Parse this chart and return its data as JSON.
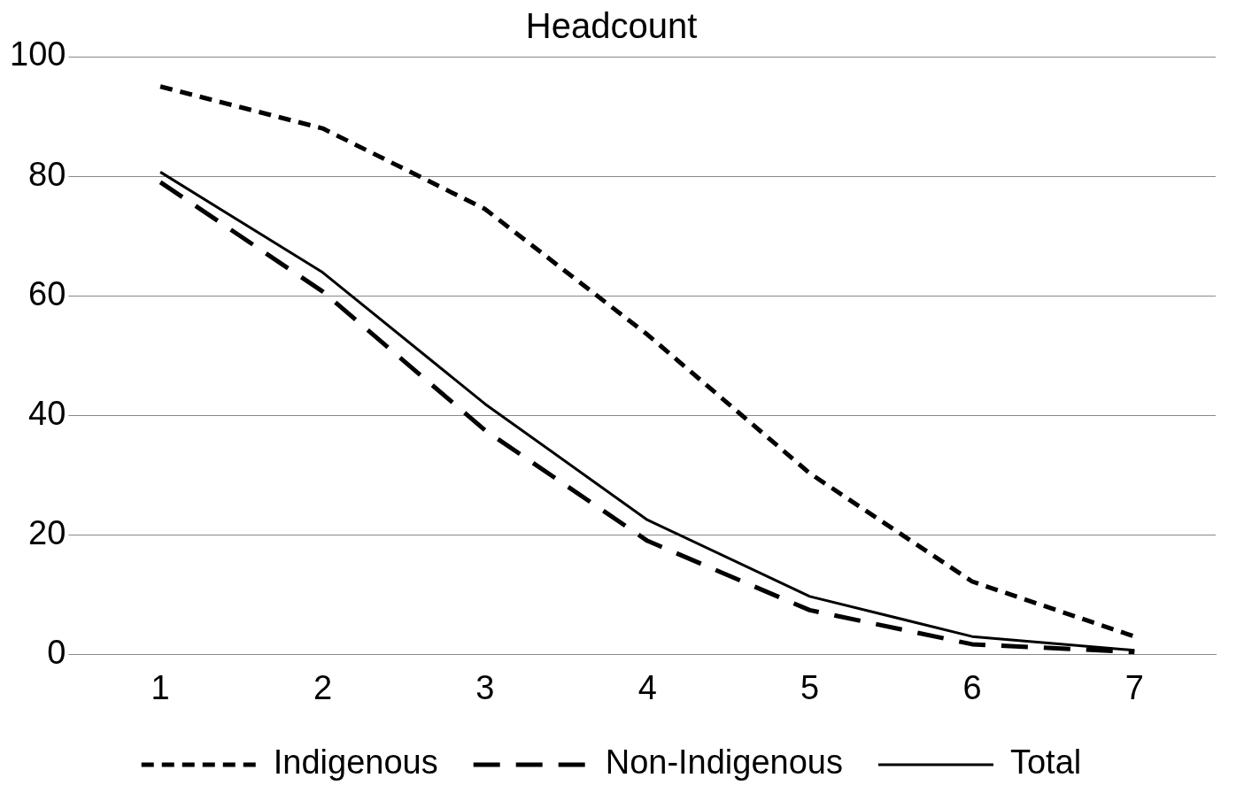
{
  "chart_data": {
    "type": "line",
    "title": "Headcount",
    "categories": [
      "1",
      "2",
      "3",
      "4",
      "5",
      "6",
      "7"
    ],
    "series": [
      {
        "name": "Indigenous",
        "color": "#000000",
        "line_style": "dotted",
        "values": [
          95,
          88,
          74.5,
          53.5,
          30.3,
          12.2,
          3
        ]
      },
      {
        "name": "Non-Indigenous",
        "color": "#000000",
        "line_style": "dashed",
        "values": [
          79,
          60.7,
          37.5,
          19,
          7.4,
          1.7,
          0.4
        ]
      },
      {
        "name": "Total",
        "color": "#000000",
        "line_style": "solid",
        "values": [
          80.7,
          63.9,
          41.9,
          22.5,
          9.7,
          3,
          0.7
        ]
      }
    ],
    "ylim": [
      0,
      100
    ],
    "yticks": [
      0,
      20,
      40,
      60,
      80,
      100
    ],
    "grid": "y",
    "legend": "bottom"
  }
}
